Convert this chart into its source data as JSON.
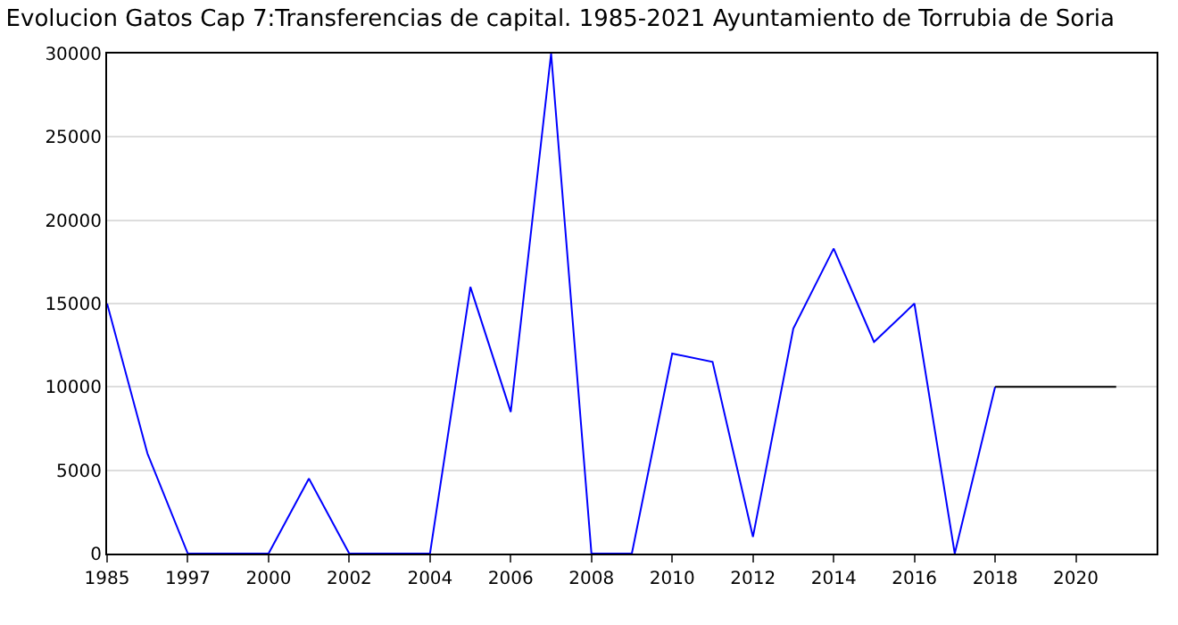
{
  "chart_data": {
    "type": "line",
    "title": "Evolucion Gatos Cap 7:Transferencias de capital. 1985-2021 Ayuntamiento de Torrubia de Soria",
    "categories": [
      "1985",
      null,
      "1997",
      null,
      "2000",
      null,
      "2002",
      null,
      "2004",
      null,
      "2006",
      null,
      "2008",
      null,
      "2010",
      null,
      "2012",
      null,
      "2014",
      null,
      "2016",
      null,
      "2018",
      null,
      "2020",
      null
    ],
    "series": [
      {
        "color": "#0000ff",
        "values": [
          15000,
          6000,
          0,
          0,
          0,
          4500,
          0,
          0,
          0,
          16000,
          8500,
          30000,
          0,
          0,
          12000,
          11500,
          1000,
          13500,
          18300,
          12700,
          15000,
          0,
          10000,
          null,
          null,
          null
        ]
      },
      {
        "color": "#000000",
        "values": [
          null,
          null,
          null,
          null,
          null,
          null,
          null,
          null,
          null,
          null,
          null,
          null,
          null,
          null,
          null,
          null,
          null,
          null,
          null,
          null,
          null,
          null,
          10000,
          10000,
          10000,
          10000
        ]
      }
    ],
    "ylim": [
      0,
      30000
    ],
    "yticks": [
      0,
      5000,
      10000,
      15000,
      20000,
      25000,
      30000
    ],
    "grid": "y",
    "marker": "none",
    "line_style": "solid"
  }
}
